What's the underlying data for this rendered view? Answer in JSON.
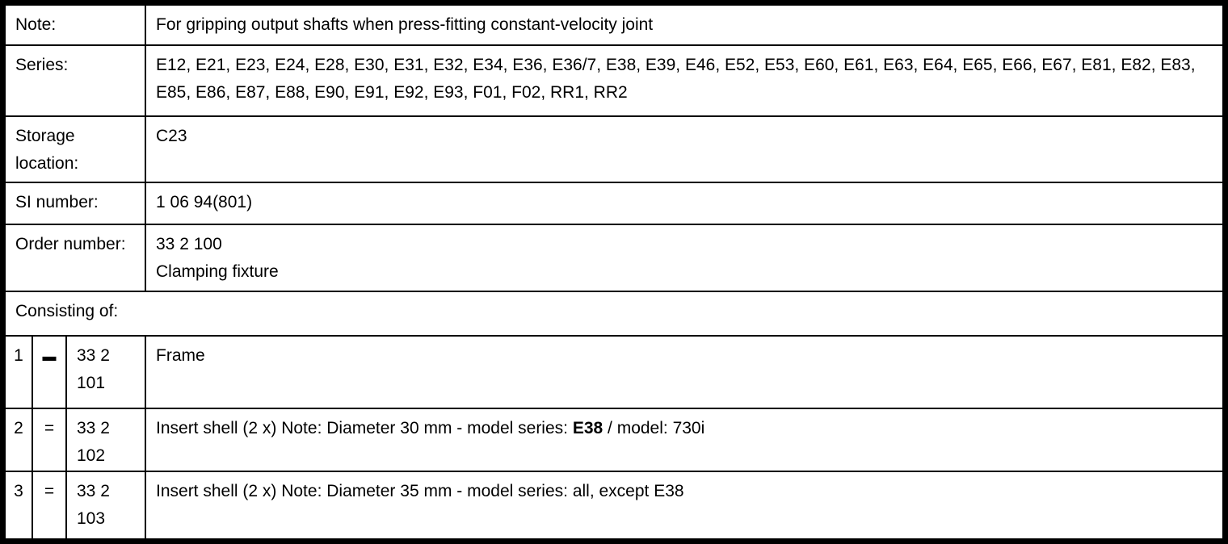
{
  "info": {
    "note": {
      "label": "Note:",
      "value": "For gripping output shafts when press-fitting constant-velocity joint"
    },
    "series": {
      "label": "Series:",
      "value": "E12, E21, E23, E24, E28, E30, E31, E32, E34, E36, E36/7, E38, E39, E46, E52, E53, E60, E61, E63, E64, E65, E66, E67, E81, E82, E83, E85, E86, E87, E88, E90, E91, E92, E93, F01, F02, RR1, RR2"
    },
    "storage_location": {
      "label": "Storage location:",
      "value": "C23"
    },
    "si_number": {
      "label": "SI number:",
      "value": "1 06 94(801)"
    },
    "order_number": {
      "label": "Order number:",
      "value": "33 2 100\nClamping fixture"
    }
  },
  "consisting": {
    "header": "Consisting of:",
    "items": [
      {
        "index": "1",
        "symbol": "▬",
        "number": "33 2\n101",
        "description": "Frame"
      },
      {
        "index": "2",
        "symbol": "=",
        "number": "33 2\n102",
        "description_pre": "Insert shell (2 x) Note: Diameter 30 mm - model series: ",
        "description_bold": "E38",
        "description_post": " / model: 730i"
      },
      {
        "index": "3",
        "symbol": "=",
        "number": "33 2\n103",
        "description": "Insert shell (2 x) Note: Diameter 35 mm - model series: all, except E38"
      }
    ]
  }
}
